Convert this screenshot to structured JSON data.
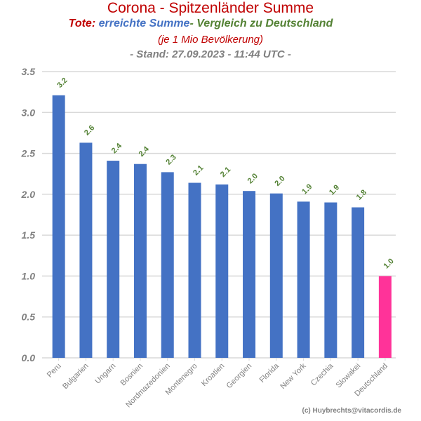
{
  "header": {
    "title": "Corona - Spitzenländer Summe",
    "subtitle_part1": "Tote:",
    "subtitle_part2": "erreichte Summe",
    "subtitle_part3": "- Vergleich zu Deutschland",
    "note": "(je 1 Mio Bevölkerung)",
    "stand": "- Stand: 27.09.2023 - 11:44 UTC -"
  },
  "footer": {
    "credit": "(c) Huybrechts@vitacordis.de"
  },
  "colors": {
    "bar": "#4472c4",
    "highlight": "#ff3399",
    "label": "#548235",
    "grid": "#d9d9d9",
    "axis_text": "#808080"
  },
  "chart_data": {
    "type": "bar",
    "categories": [
      "Peru",
      "Bulgarien",
      "Ungarn",
      "Bosnien",
      "Nordmazedonien",
      "Montenegro",
      "Kroatien",
      "Georgien",
      "Florida",
      "New York",
      "Czechia",
      "Slowakei",
      "Deutschland"
    ],
    "values": [
      3.21,
      2.63,
      2.41,
      2.37,
      2.27,
      2.14,
      2.12,
      2.04,
      2.01,
      1.91,
      1.9,
      1.84,
      1.0
    ],
    "data_labels": [
      "3.2",
      "2.6",
      "2.4",
      "2.4",
      "2.3",
      "2.1",
      "2.1",
      "2.0",
      "2.0",
      "1.9",
      "1.9",
      "1.8",
      "1.0"
    ],
    "highlight": "Deutschland",
    "ylim": [
      0,
      3.5
    ],
    "yticks": [
      "0.0",
      "0.5",
      "1.0",
      "1.5",
      "2.0",
      "2.5",
      "3.0",
      "3.5"
    ],
    "grid": true,
    "title": "Corona - Spitzenländer Summe",
    "xlabel": "",
    "ylabel": ""
  }
}
